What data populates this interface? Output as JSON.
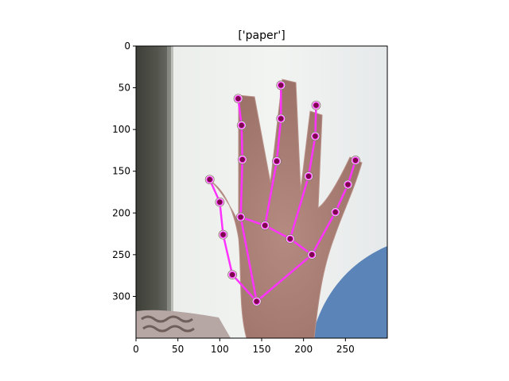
{
  "title": "['paper']",
  "image_extent": {
    "x": [
      0,
      300
    ],
    "y": [
      0,
      350
    ]
  },
  "x_axis": {
    "ticks": [
      0,
      50,
      100,
      150,
      200,
      250
    ],
    "labels": [
      "0",
      "50",
      "100",
      "150",
      "200",
      "250"
    ]
  },
  "y_axis": {
    "ticks": [
      0,
      50,
      100,
      150,
      200,
      250,
      300
    ],
    "labels": [
      "0",
      "50",
      "100",
      "150",
      "200",
      "250",
      "300"
    ],
    "inverted": true
  },
  "colors": {
    "skeleton": "#ff33ff",
    "joint_fill": "#7a0a4a",
    "joint_ring": "#ffffff"
  },
  "landmarks": [
    {
      "id": 0,
      "x": 144,
      "y": 306
    },
    {
      "id": 1,
      "x": 115,
      "y": 274
    },
    {
      "id": 2,
      "x": 104,
      "y": 226
    },
    {
      "id": 3,
      "x": 100,
      "y": 187
    },
    {
      "id": 4,
      "x": 88,
      "y": 160
    },
    {
      "id": 5,
      "x": 125,
      "y": 205
    },
    {
      "id": 6,
      "x": 127,
      "y": 136
    },
    {
      "id": 7,
      "x": 126,
      "y": 95
    },
    {
      "id": 8,
      "x": 122,
      "y": 63
    },
    {
      "id": 9,
      "x": 154,
      "y": 215
    },
    {
      "id": 10,
      "x": 168,
      "y": 138
    },
    {
      "id": 11,
      "x": 173,
      "y": 87
    },
    {
      "id": 12,
      "x": 173,
      "y": 47
    },
    {
      "id": 13,
      "x": 184,
      "y": 231
    },
    {
      "id": 14,
      "x": 206,
      "y": 156
    },
    {
      "id": 15,
      "x": 214,
      "y": 108
    },
    {
      "id": 16,
      "x": 215,
      "y": 71
    },
    {
      "id": 17,
      "x": 210,
      "y": 250
    },
    {
      "id": 18,
      "x": 238,
      "y": 199
    },
    {
      "id": 19,
      "x": 253,
      "y": 166
    },
    {
      "id": 20,
      "x": 262,
      "y": 137
    }
  ],
  "connections": [
    [
      0,
      1
    ],
    [
      1,
      2
    ],
    [
      2,
      3
    ],
    [
      3,
      4
    ],
    [
      0,
      5
    ],
    [
      5,
      6
    ],
    [
      6,
      7
    ],
    [
      7,
      8
    ],
    [
      5,
      9
    ],
    [
      9,
      10
    ],
    [
      10,
      11
    ],
    [
      11,
      12
    ],
    [
      9,
      13
    ],
    [
      13,
      14
    ],
    [
      14,
      15
    ],
    [
      15,
      16
    ],
    [
      13,
      17
    ],
    [
      0,
      17
    ],
    [
      17,
      18
    ],
    [
      18,
      19
    ],
    [
      19,
      20
    ]
  ]
}
